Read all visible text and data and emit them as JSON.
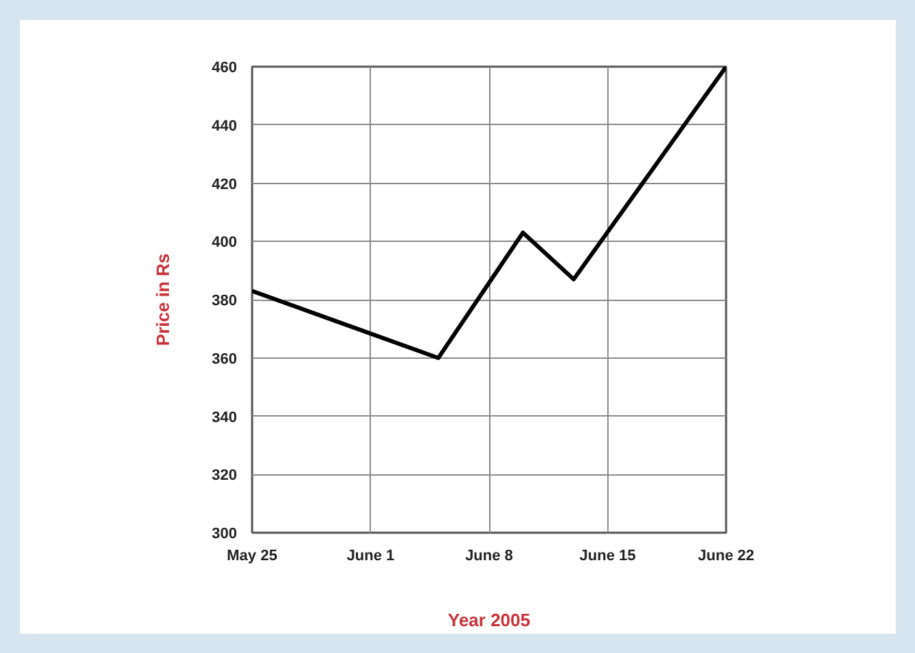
{
  "chart_data": {
    "type": "line",
    "xlabel": "Year 2005",
    "ylabel": "Price in Rs",
    "x": [
      "2005-05-25",
      "2005-06-05",
      "2005-06-10",
      "2005-06-13",
      "2005-06-22"
    ],
    "series": [
      {
        "color": "#000000",
        "values": [
          383,
          360,
          403,
          387,
          460
        ]
      }
    ],
    "xlim": [
      "2005-05-25",
      "2005-06-22"
    ],
    "xticks": [
      {
        "value": "2005-05-25",
        "label": "May 25"
      },
      {
        "value": "2005-06-01",
        "label": "June 1"
      },
      {
        "value": "2005-06-08",
        "label": "June 8"
      },
      {
        "value": "2005-06-15",
        "label": "June 15"
      },
      {
        "value": "2005-06-22",
        "label": "June 22"
      }
    ],
    "ylim": [
      300,
      460
    ],
    "yticks": [
      300,
      320,
      340,
      360,
      380,
      400,
      420,
      440,
      460
    ],
    "grid": true,
    "line_style": "solid"
  }
}
